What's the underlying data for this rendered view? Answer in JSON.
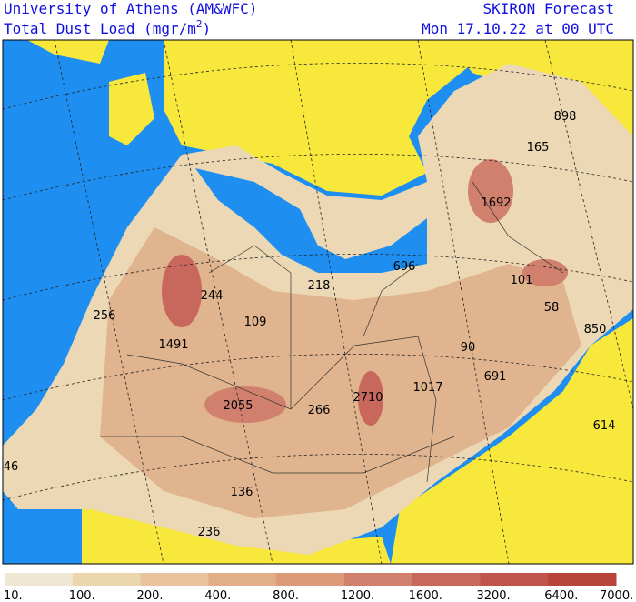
{
  "header": {
    "left_line1": "University of Athens (AM&WFC)",
    "left_line2": "Total Dust Load (mgr/m",
    "left_line2_sup": "2",
    "left_line2_end": ")",
    "right_line1": "SKIRON Forecast",
    "right_line2": "Mon 17.10.22 at 00 UTC"
  },
  "map_labels": [
    898,
    165,
    1692,
    696,
    218,
    244,
    101,
    58,
    850,
    256,
    109,
    1491,
    90,
    691,
    1017,
    2710,
    2055,
    266,
    614,
    46,
    136,
    236
  ],
  "colorbar": {
    "labels": [
      "10.",
      "100.",
      "200.",
      "400.",
      "800.",
      "1200.",
      "1600.",
      "3200.",
      "6400.",
      "7000."
    ],
    "colors": [
      "#f0e6d4",
      "#ecd6ae",
      "#e8c39c",
      "#e2ae88",
      "#dd9a78",
      "#d0806c",
      "#c8685c",
      "#c0544c",
      "#b8443c"
    ]
  }
}
